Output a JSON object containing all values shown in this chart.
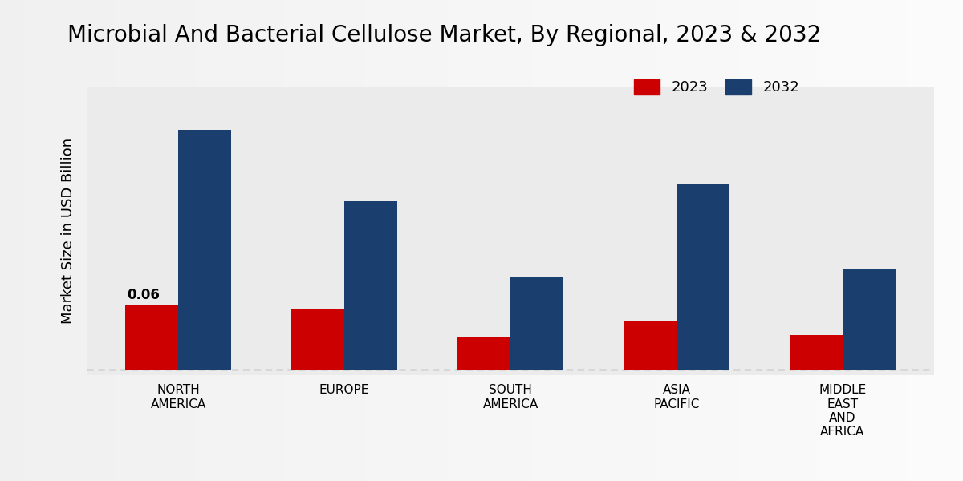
{
  "title": "Microbial And Bacterial Cellulose Market, By Regional, 2023 & 2032",
  "ylabel": "Market Size in USD Billion",
  "categories": [
    "NORTH\nAMERICA",
    "EUROPE",
    "SOUTH\nAMERICA",
    "ASIA\nPACIFIC",
    "MIDDLE\nEAST\nAND\nAFRICA"
  ],
  "values_2023": [
    0.06,
    0.055,
    0.03,
    0.045,
    0.032
  ],
  "values_2032": [
    0.22,
    0.155,
    0.085,
    0.17,
    0.092
  ],
  "color_2023": "#cc0000",
  "color_2032": "#1a3f6f",
  "bar_width": 0.32,
  "annotation_label": "0.06",
  "annotation_index": 0,
  "bg_left": "#e8e8e8",
  "bg_right": "#f5f5f5",
  "legend_labels": [
    "2023",
    "2032"
  ],
  "title_fontsize": 20,
  "ylabel_fontsize": 13,
  "tick_fontsize": 11,
  "ylim_min": -0.005,
  "ylim_max": 0.26
}
